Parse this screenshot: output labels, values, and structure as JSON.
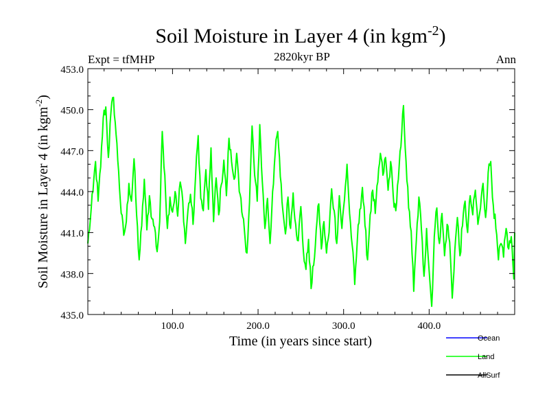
{
  "chart_data": {
    "type": "line",
    "title_main": "Soil Moisture in Layer 4 (in kgm",
    "title_sup": "-2",
    "title_close": ")",
    "subtitle": "2820kyr BP",
    "left_label": "Expt = tfMHP",
    "right_label": "Ann",
    "xlabel": "Time (in years since start)",
    "ylabel_main": "Soil Moisture in Layer 4 (in kgm",
    "ylabel_sup": "-2",
    "ylabel_close": ")",
    "xlim": [
      1,
      500
    ],
    "ylim": [
      435.0,
      453.0
    ],
    "xticks": [
      100,
      200,
      300,
      400
    ],
    "xtick_labels": [
      "100.0",
      "200.0",
      "300.0",
      "400.0"
    ],
    "yticks": [
      435,
      438,
      441,
      444,
      447,
      450,
      453
    ],
    "ytick_labels": [
      "435.0",
      "438.0",
      "441.0",
      "444.0",
      "447.0",
      "450.0",
      "453.0"
    ],
    "legend": [
      {
        "name": "Ocean",
        "color": "#0000ff"
      },
      {
        "name": "Land",
        "color": "#00ff00"
      },
      {
        "name": "AllSurf",
        "color": "#000000"
      }
    ],
    "series": [
      {
        "name": "Land",
        "color": "#00ff00",
        "keypoints": [
          [
            1,
            440.2
          ],
          [
            4,
            442.0
          ],
          [
            7,
            444.0
          ],
          [
            10,
            446.2
          ],
          [
            13,
            443.3
          ],
          [
            16,
            445.8
          ],
          [
            19,
            449.4
          ],
          [
            22,
            450.2
          ],
          [
            25,
            446.5
          ],
          [
            28,
            449.8
          ],
          [
            31,
            450.9
          ],
          [
            34,
            448.2
          ],
          [
            37,
            445.5
          ],
          [
            40,
            442.4
          ],
          [
            43,
            440.8
          ],
          [
            46,
            441.8
          ],
          [
            49,
            444.6
          ],
          [
            52,
            443.3
          ],
          [
            55,
            446.4
          ],
          [
            58,
            442.3
          ],
          [
            61,
            439.0
          ],
          [
            64,
            441.5
          ],
          [
            67,
            444.9
          ],
          [
            70,
            441.2
          ],
          [
            73,
            443.7
          ],
          [
            76,
            442.0
          ],
          [
            79,
            441.4
          ],
          [
            82,
            439.6
          ],
          [
            85,
            441.8
          ],
          [
            88,
            448.4
          ],
          [
            91,
            445.2
          ],
          [
            94,
            441.3
          ],
          [
            97,
            443.6
          ],
          [
            100,
            442.5
          ],
          [
            103,
            444.0
          ],
          [
            106,
            442.2
          ],
          [
            109,
            444.7
          ],
          [
            112,
            443.3
          ],
          [
            115,
            440.2
          ],
          [
            118,
            442.6
          ],
          [
            121,
            443.8
          ],
          [
            124,
            441.6
          ],
          [
            127,
            445.2
          ],
          [
            130,
            448.1
          ],
          [
            133,
            443.5
          ],
          [
            136,
            442.6
          ],
          [
            139,
            445.6
          ],
          [
            142,
            442.7
          ],
          [
            145,
            447.2
          ],
          [
            148,
            441.8
          ],
          [
            151,
            445.0
          ],
          [
            154,
            442.3
          ],
          [
            157,
            444.5
          ],
          [
            160,
            446.3
          ],
          [
            163,
            443.7
          ],
          [
            166,
            447.9
          ],
          [
            169,
            446.2
          ],
          [
            172,
            444.9
          ],
          [
            175,
            446.8
          ],
          [
            178,
            444.0
          ],
          [
            181,
            442.5
          ],
          [
            184,
            441.2
          ],
          [
            187,
            439.5
          ],
          [
            190,
            443.2
          ],
          [
            193,
            448.8
          ],
          [
            196,
            445.2
          ],
          [
            199,
            443.3
          ],
          [
            202,
            448.9
          ],
          [
            205,
            444.7
          ],
          [
            208,
            441.3
          ],
          [
            211,
            443.5
          ],
          [
            214,
            440.2
          ],
          [
            217,
            444.0
          ],
          [
            220,
            446.8
          ],
          [
            223,
            448.4
          ],
          [
            226,
            445.1
          ],
          [
            229,
            442.6
          ],
          [
            232,
            440.9
          ],
          [
            235,
            443.6
          ],
          [
            238,
            441.3
          ],
          [
            241,
            443.9
          ],
          [
            244,
            441.6
          ],
          [
            247,
            440.4
          ],
          [
            250,
            442.9
          ],
          [
            253,
            439.6
          ],
          [
            256,
            438.3
          ],
          [
            259,
            440.5
          ],
          [
            262,
            436.9
          ],
          [
            265,
            438.6
          ],
          [
            268,
            441.2
          ],
          [
            271,
            443.1
          ],
          [
            274,
            439.8
          ],
          [
            277,
            441.8
          ],
          [
            280,
            439.5
          ],
          [
            283,
            441.0
          ],
          [
            286,
            444.2
          ],
          [
            289,
            442.6
          ],
          [
            292,
            440.2
          ],
          [
            295,
            443.7
          ],
          [
            298,
            441.3
          ],
          [
            301,
            443.4
          ],
          [
            304,
            446.0
          ],
          [
            307,
            442.4
          ],
          [
            310,
            440.1
          ],
          [
            313,
            437.2
          ],
          [
            316,
            440.4
          ],
          [
            319,
            442.7
          ],
          [
            322,
            444.3
          ],
          [
            325,
            441.5
          ],
          [
            328,
            439.0
          ],
          [
            331,
            442.3
          ],
          [
            334,
            444.1
          ],
          [
            337,
            442.4
          ],
          [
            340,
            444.7
          ],
          [
            343,
            446.8
          ],
          [
            346,
            445.2
          ],
          [
            349,
            446.5
          ],
          [
            352,
            444.1
          ],
          [
            355,
            446.2
          ],
          [
            358,
            443.7
          ],
          [
            361,
            442.6
          ],
          [
            364,
            444.9
          ],
          [
            367,
            447.3
          ],
          [
            370,
            450.3
          ],
          [
            373,
            446.2
          ],
          [
            376,
            442.8
          ],
          [
            379,
            441.1
          ],
          [
            382,
            436.7
          ],
          [
            385,
            440.4
          ],
          [
            388,
            443.6
          ],
          [
            391,
            441.2
          ],
          [
            394,
            437.8
          ],
          [
            397,
            441.3
          ],
          [
            400,
            438.2
          ],
          [
            403,
            435.6
          ],
          [
            406,
            440.7
          ],
          [
            409,
            442.8
          ],
          [
            412,
            440.2
          ],
          [
            415,
            442.4
          ],
          [
            418,
            439.3
          ],
          [
            421,
            441.6
          ],
          [
            424,
            440.3
          ],
          [
            427,
            436.2
          ],
          [
            430,
            439.7
          ],
          [
            433,
            442.1
          ],
          [
            436,
            439.3
          ],
          [
            439,
            441.5
          ],
          [
            442,
            443.3
          ],
          [
            445,
            441.0
          ],
          [
            448,
            443.7
          ],
          [
            451,
            442.3
          ],
          [
            454,
            444.1
          ],
          [
            457,
            441.6
          ],
          [
            460,
            442.8
          ],
          [
            463,
            444.6
          ],
          [
            466,
            442.1
          ],
          [
            469,
            445.4
          ],
          [
            472,
            446.2
          ],
          [
            475,
            443.0
          ],
          [
            478,
            441.3
          ],
          [
            481,
            439.0
          ],
          [
            484,
            440.2
          ],
          [
            487,
            439.2
          ],
          [
            490,
            441.3
          ],
          [
            493,
            439.8
          ],
          [
            496,
            440.7
          ],
          [
            499,
            437.6
          ],
          [
            500,
            441.0
          ]
        ]
      }
    ]
  }
}
